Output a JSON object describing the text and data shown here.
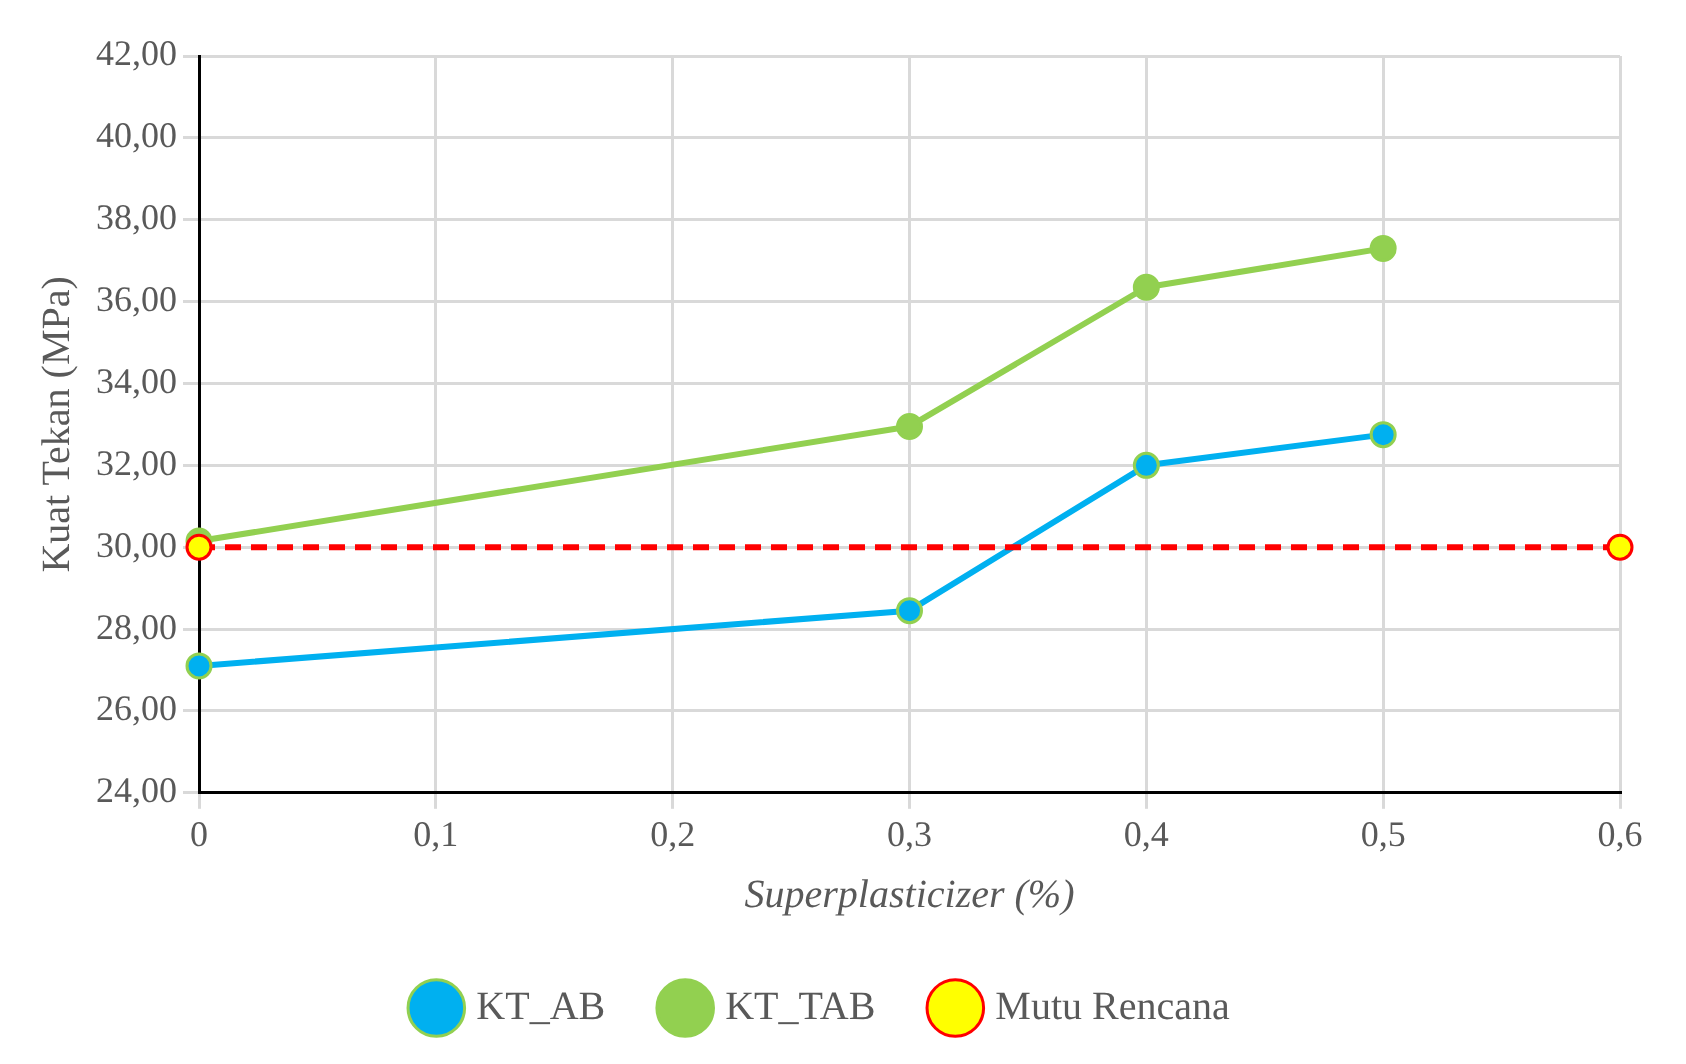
{
  "chart_data": {
    "type": "line",
    "xlabel": "Superplasticizer (%)",
    "ylabel": "Kuat Tekan (MPa)",
    "xlim": [
      0,
      0.6
    ],
    "ylim": [
      24,
      42
    ],
    "xticks": [
      {
        "value": 0,
        "label": "0"
      },
      {
        "value": 0.1,
        "label": "0,1"
      },
      {
        "value": 0.2,
        "label": "0,2"
      },
      {
        "value": 0.3,
        "label": "0,3"
      },
      {
        "value": 0.4,
        "label": "0,4"
      },
      {
        "value": 0.5,
        "label": "0,5"
      },
      {
        "value": 0.6,
        "label": "0,6"
      }
    ],
    "yticks": [
      {
        "value": 24,
        "label": "24,00"
      },
      {
        "value": 26,
        "label": "26,00"
      },
      {
        "value": 28,
        "label": "28,00"
      },
      {
        "value": 30,
        "label": "30,00"
      },
      {
        "value": 32,
        "label": "32,00"
      },
      {
        "value": 34,
        "label": "34,00"
      },
      {
        "value": 36,
        "label": "36,00"
      },
      {
        "value": 38,
        "label": "38,00"
      },
      {
        "value": 40,
        "label": "40,00"
      },
      {
        "value": 42,
        "label": "42,00"
      }
    ],
    "grid": true,
    "legend": "bottom",
    "marker": "circle",
    "series": [
      {
        "name": "KT_AB",
        "color": "#00b0f0",
        "x": [
          0,
          0.3,
          0.4,
          0.5
        ],
        "values": [
          27.1,
          28.45,
          32.0,
          32.75
        ],
        "line_style": "solid"
      },
      {
        "name": "KT_TAB",
        "color": "#92d050",
        "x": [
          0,
          0.3,
          0.4,
          0.5
        ],
        "values": [
          30.15,
          32.95,
          36.35,
          37.3
        ],
        "line_style": "solid"
      },
      {
        "name": "Mutu Rencana",
        "color": "#ff0000",
        "x": [
          0,
          0.6
        ],
        "values": [
          30,
          30
        ],
        "line_style": "dashed"
      }
    ]
  }
}
